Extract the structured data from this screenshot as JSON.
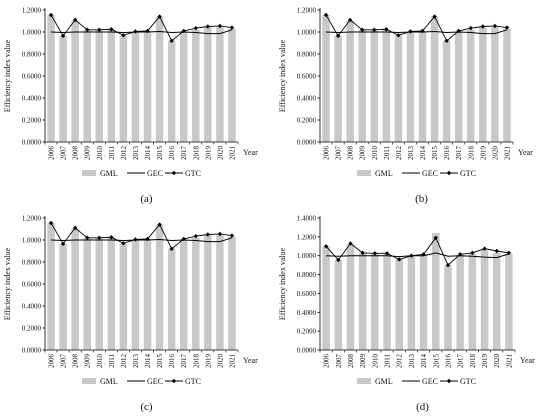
{
  "chart_data": [
    {
      "type": "bar+line",
      "caption": "(a)",
      "ylabel": "Efficiency index value",
      "xunit": "Year",
      "ylim": [
        0,
        1.2
      ],
      "ytick_step": 0.2,
      "ytick_decimals": 4,
      "categories": [
        "2006",
        "2007",
        "2008",
        "2009",
        "2010",
        "2011",
        "2012",
        "2013",
        "2014",
        "2015",
        "2016",
        "2017",
        "2018",
        "2019",
        "2020",
        "2021"
      ],
      "series": [
        {
          "name": "GML",
          "kind": "bar",
          "color": "#c8c8c8",
          "values": [
            1.155,
            0.965,
            1.105,
            1.015,
            1.015,
            1.02,
            0.965,
            1.0,
            1.005,
            1.14,
            0.92,
            1.005,
            1.02,
            1.04,
            1.045,
            1.03
          ]
        },
        {
          "name": "GEC",
          "kind": "line",
          "color": "#000000",
          "values": [
            1.0,
            0.995,
            1.0,
            1.0,
            1.0,
            1.0,
            0.995,
            1.0,
            1.0,
            1.005,
            0.995,
            1.0,
            0.995,
            0.985,
            0.985,
            1.02
          ]
        },
        {
          "name": "GTC",
          "kind": "line-marker",
          "color": "#000000",
          "values": [
            1.155,
            0.965,
            1.11,
            1.02,
            1.02,
            1.025,
            0.97,
            1.005,
            1.01,
            1.14,
            0.92,
            1.01,
            1.035,
            1.05,
            1.055,
            1.04
          ]
        }
      ]
    },
    {
      "type": "bar+line",
      "caption": "(b)",
      "ylabel": "Efficiency index value",
      "xunit": "Year",
      "ylim": [
        0,
        1.2
      ],
      "ytick_step": 0.2,
      "ytick_decimals": 4,
      "categories": [
        "2006",
        "2007",
        "2008",
        "2009",
        "2010",
        "2011",
        "2012",
        "2013",
        "2014",
        "2015",
        "2016",
        "2017",
        "2018",
        "2019",
        "2020",
        "2021"
      ],
      "series": [
        {
          "name": "GML",
          "kind": "bar",
          "color": "#c8c8c8",
          "values": [
            1.155,
            0.965,
            1.105,
            1.015,
            1.015,
            1.02,
            0.965,
            1.0,
            1.005,
            1.14,
            0.92,
            1.005,
            1.02,
            1.04,
            1.045,
            1.03
          ]
        },
        {
          "name": "GEC",
          "kind": "line",
          "color": "#000000",
          "values": [
            1.0,
            0.995,
            1.0,
            1.0,
            1.0,
            1.0,
            0.995,
            1.0,
            1.0,
            1.005,
            0.995,
            1.0,
            0.995,
            0.985,
            0.985,
            1.02
          ]
        },
        {
          "name": "GTC",
          "kind": "line-marker",
          "color": "#000000",
          "values": [
            1.155,
            0.965,
            1.11,
            1.02,
            1.02,
            1.025,
            0.97,
            1.005,
            1.01,
            1.14,
            0.92,
            1.01,
            1.035,
            1.05,
            1.055,
            1.04
          ]
        }
      ]
    },
    {
      "type": "bar+line",
      "caption": "(c)",
      "ylabel": "Efficiency index value",
      "xunit": "Year",
      "ylim": [
        0,
        1.2
      ],
      "ytick_step": 0.2,
      "ytick_decimals": 4,
      "categories": [
        "2006",
        "2007",
        "2008",
        "2009",
        "2010",
        "2011",
        "2012",
        "2013",
        "2014",
        "2015",
        "2016",
        "2017",
        "2018",
        "2019",
        "2020",
        "2021"
      ],
      "series": [
        {
          "name": "GML",
          "kind": "bar",
          "color": "#c8c8c8",
          "values": [
            1.155,
            0.965,
            1.105,
            1.015,
            1.015,
            1.02,
            0.965,
            1.0,
            1.005,
            1.14,
            0.92,
            1.005,
            1.02,
            1.04,
            1.045,
            1.03
          ]
        },
        {
          "name": "GEC",
          "kind": "line",
          "color": "#000000",
          "values": [
            1.0,
            0.995,
            1.0,
            1.0,
            1.0,
            1.0,
            0.995,
            1.0,
            1.0,
            1.005,
            0.995,
            1.0,
            0.995,
            0.985,
            0.985,
            1.02
          ]
        },
        {
          "name": "GTC",
          "kind": "line-marker",
          "color": "#000000",
          "values": [
            1.155,
            0.965,
            1.11,
            1.02,
            1.02,
            1.025,
            0.97,
            1.005,
            1.01,
            1.14,
            0.92,
            1.01,
            1.035,
            1.05,
            1.055,
            1.04
          ]
        }
      ]
    },
    {
      "type": "bar+line",
      "caption": "(d)",
      "ylabel": "Efficiency index value",
      "xunit": "Year",
      "ylim": [
        0,
        1.4
      ],
      "ytick_step": 0.2,
      "ytick_decimals": 4,
      "categories": [
        "2006",
        "2007",
        "2008",
        "2009",
        "2010",
        "2011",
        "2012",
        "2013",
        "2014",
        "2015",
        "2016",
        "2017",
        "2018",
        "2019",
        "2020",
        "2021"
      ],
      "series": [
        {
          "name": "GML",
          "kind": "bar",
          "color": "#c8c8c8",
          "values": [
            1.1,
            0.955,
            1.12,
            1.025,
            1.02,
            1.02,
            0.96,
            0.995,
            1.01,
            1.24,
            0.9,
            1.01,
            1.02,
            1.06,
            1.03,
            1.02
          ]
        },
        {
          "name": "GEC",
          "kind": "line",
          "color": "#000000",
          "values": [
            1.0,
            0.995,
            1.0,
            1.0,
            1.0,
            1.0,
            0.99,
            1.0,
            1.0,
            1.03,
            0.995,
            1.0,
            0.995,
            0.985,
            0.98,
            1.02
          ]
        },
        {
          "name": "GTC",
          "kind": "line-marker",
          "color": "#000000",
          "values": [
            1.1,
            0.955,
            1.13,
            1.03,
            1.025,
            1.025,
            0.96,
            1.0,
            1.015,
            1.19,
            0.9,
            1.015,
            1.03,
            1.075,
            1.05,
            1.03
          ]
        }
      ]
    }
  ]
}
